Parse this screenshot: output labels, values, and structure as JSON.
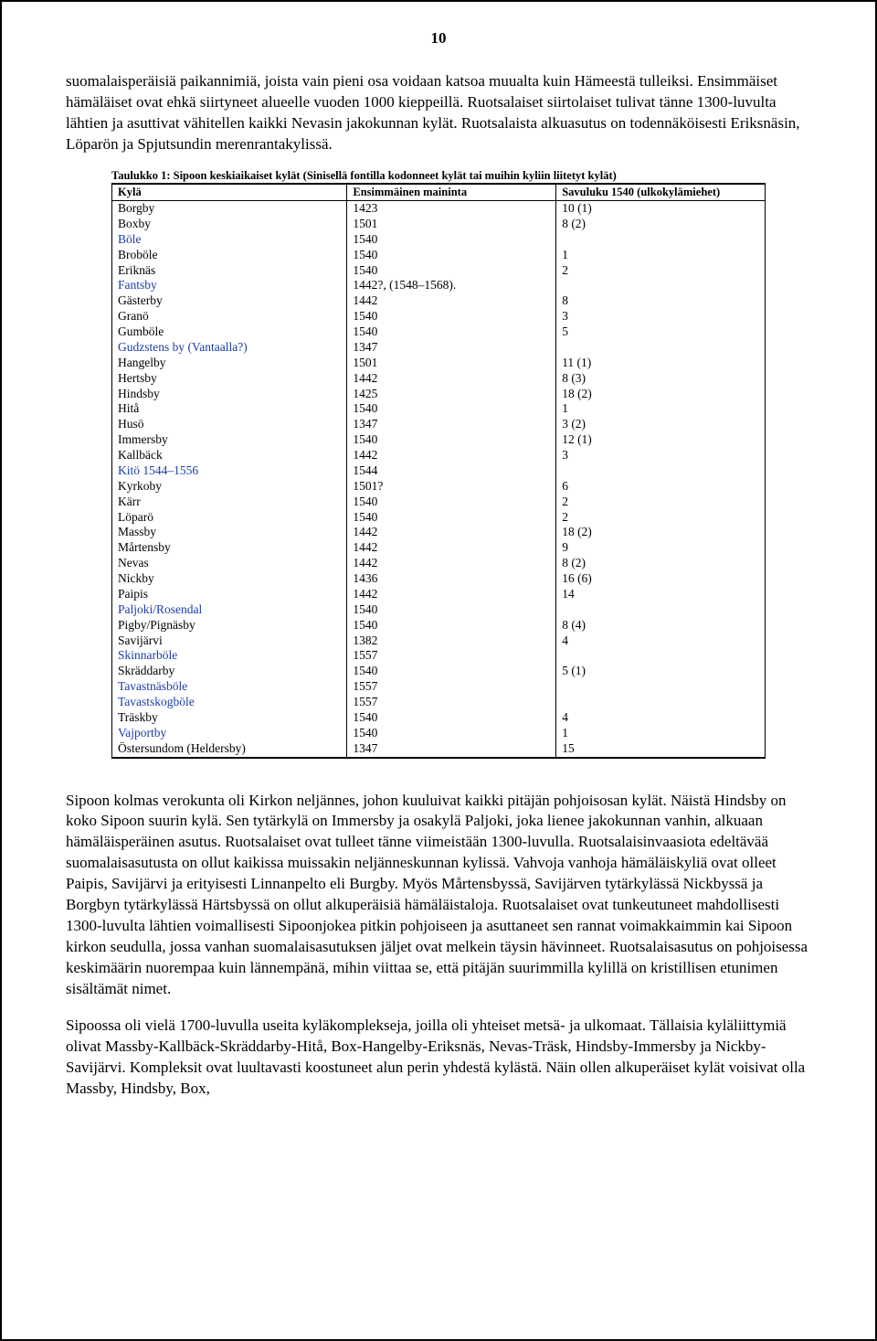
{
  "page_number": "10",
  "paragraphs": {
    "p1": "suomalaisperäisiä paikannimiä, joista vain pieni osa voidaan katsoa muualta kuin Hämeestä tulleiksi. Ensimmäiset hämäläiset ovat ehkä siirtyneet alueelle vuoden 1000 kieppeillä. Ruotsalaiset siirtolaiset tulivat tänne 1300-luvulta lähtien ja asuttivat vähitellen kaikki Nevasin jakokunnan kylät. Ruotsalaista alkuasutus on todennäköisesti Eriksnäsin, Löparön ja Spjutsundin merenrantakylissä.",
    "p2": "Sipoon kolmas verokunta oli Kirkon neljännes, johon kuuluivat kaikki pitäjän pohjoisosan kylät. Näistä Hindsby on koko Sipoon suurin kylä. Sen tytärkylä on Immersby ja osakylä Paljoki, joka lienee jakokunnan vanhin, alkuaan hämäläisperäinen asutus. Ruotsalaiset ovat tulleet tänne viimeistään 1300-luvulla. Ruotsalaisinvaasiota edeltävää suomalaisasutusta on ollut kaikissa muissakin neljänneskunnan kylissä. Vahvoja vanhoja hämäläiskyliä ovat olleet Paipis, Savijärvi ja erityisesti Linnanpelto eli Burgby. Myös Mårtensbyssä, Savijärven tytärkylässä Nickbyssä ja Borgbyn tytärkylässä Härtsbyssä on ollut alkuperäisiä hämäläistaloja. Ruotsalaiset ovat tunkeutuneet mahdollisesti 1300-luvulta lähtien voimallisesti Sipoonjokea pitkin pohjoiseen ja asuttaneet sen rannat voimakkaimmin kai Sipoon kirkon seudulla, jossa vanhan suomalaisasutuksen jäljet ovat melkein täysin hävinneet. Ruotsalaisasutus on pohjoisessa keskimäärin nuorempaa kuin lännempänä, mihin viittaa se, että pitäjän suurimmilla kylillä on kristillisen etunimen sisältämät nimet.",
    "p3": "Sipoossa oli vielä 1700-luvulla useita kyläkomplekseja, joilla oli yhteiset metsä- ja ulkomaat. Tällaisia kyläliittymiä olivat Massby-Kallbäck-Skräddarby-Hitå, Box-Hangelby-Eriksnäs, Nevas-Träsk, Hindsby-Immersby ja Nickby-Savijärvi. Kompleksit ovat luultavasti koostuneet alun perin yhdestä kylästä. Näin ollen alkuperäiset kylät voisivat olla Massby, Hindsby, Box,"
  },
  "table": {
    "caption": "Taulukko 1: Sipoon keskiaikaiset kylät (Sinisellä fontilla kodonneet kylät tai muihin kyliin liitetyt kylät)",
    "columns": [
      "Kylä",
      "Ensimmäinen maininta",
      "Savuluku 1540 (ulkokylämiehet)"
    ],
    "rows": [
      {
        "kyla": "Borgby",
        "main": "1423",
        "savu": "10 (1)",
        "blue": false
      },
      {
        "kyla": "Boxby",
        "main": "1501",
        "savu": "8 (2)",
        "blue": false
      },
      {
        "kyla": "Böle",
        "main": "1540",
        "savu": "",
        "blue": true
      },
      {
        "kyla": "Broböle",
        "main": "1540",
        "savu": "1",
        "blue": false
      },
      {
        "kyla": "Eriknäs",
        "main": "1540",
        "savu": "2",
        "blue": false
      },
      {
        "kyla": "Fantsby",
        "main": "1442?, (1548–1568).",
        "savu": "",
        "blue": true
      },
      {
        "kyla": "Gästerby",
        "main": "1442",
        "savu": "8",
        "blue": false
      },
      {
        "kyla": "Granö",
        "main": "1540",
        "savu": "3",
        "blue": false
      },
      {
        "kyla": "Gumböle",
        "main": "1540",
        "savu": "5",
        "blue": false
      },
      {
        "kyla": "Gudzstens by (Vantaalla?)",
        "main": "1347",
        "savu": "",
        "blue": true
      },
      {
        "kyla": "Hangelby",
        "main": "1501",
        "savu": "11 (1)",
        "blue": false
      },
      {
        "kyla": "Hertsby",
        "main": "1442",
        "savu": "8 (3)",
        "blue": false
      },
      {
        "kyla": "Hindsby",
        "main": "1425",
        "savu": "18 (2)",
        "blue": false
      },
      {
        "kyla": "Hitå",
        "main": "1540",
        "savu": "1",
        "blue": false
      },
      {
        "kyla": "Husö",
        "main": "1347",
        "savu": "3 (2)",
        "blue": false
      },
      {
        "kyla": "Immersby",
        "main": "1540",
        "savu": "12 (1)",
        "blue": false
      },
      {
        "kyla": "Kallbäck",
        "main": "1442",
        "savu": "3",
        "blue": false
      },
      {
        "kyla": "Kitö 1544–1556",
        "main": "1544",
        "savu": "",
        "blue": true
      },
      {
        "kyla": "Kyrkoby",
        "main": "1501?",
        "savu": "6",
        "blue": false
      },
      {
        "kyla": "Kärr",
        "main": "1540",
        "savu": "2",
        "blue": false
      },
      {
        "kyla": "Löparö",
        "main": "1540",
        "savu": "2",
        "blue": false
      },
      {
        "kyla": "Massby",
        "main": "1442",
        "savu": "18 (2)",
        "blue": false
      },
      {
        "kyla": "Mårtensby",
        "main": "1442",
        "savu": "9",
        "blue": false
      },
      {
        "kyla": "Nevas",
        "main": "1442",
        "savu": "8 (2)",
        "blue": false
      },
      {
        "kyla": "Nickby",
        "main": "1436",
        "savu": "16 (6)",
        "blue": false
      },
      {
        "kyla": "Paipis",
        "main": "1442",
        "savu": "14",
        "blue": false
      },
      {
        "kyla": "Paljoki/Rosendal",
        "main": "1540",
        "savu": "",
        "blue": true
      },
      {
        "kyla": "Pigby/Pignäsby",
        "main": "1540",
        "savu": "8 (4)",
        "blue": false
      },
      {
        "kyla": "Savijärvi",
        "main": "1382",
        "savu": "4",
        "blue": false
      },
      {
        "kyla": "Skinnarböle",
        "main": "1557",
        "savu": "",
        "blue": true
      },
      {
        "kyla": "Skräddarby",
        "main": "1540",
        "savu": "5 (1)",
        "blue": false
      },
      {
        "kyla": "Tavastnäsböle",
        "main": "1557",
        "savu": "",
        "blue": true
      },
      {
        "kyla": "Tavastskogböle",
        "main": "1557",
        "savu": "",
        "blue": true
      },
      {
        "kyla": "Träskby",
        "main": "1540",
        "savu": "4",
        "blue": false
      },
      {
        "kyla": "Vajportby",
        "main": "1540",
        "savu": "1",
        "blue": true
      },
      {
        "kyla": "Östersundom (Heldersby)",
        "main": "1347",
        "savu": "15",
        "blue": false
      }
    ]
  },
  "colors": {
    "text": "#000000",
    "blue": "#1a3da8",
    "border": "#000000",
    "background": "#ffffff"
  }
}
